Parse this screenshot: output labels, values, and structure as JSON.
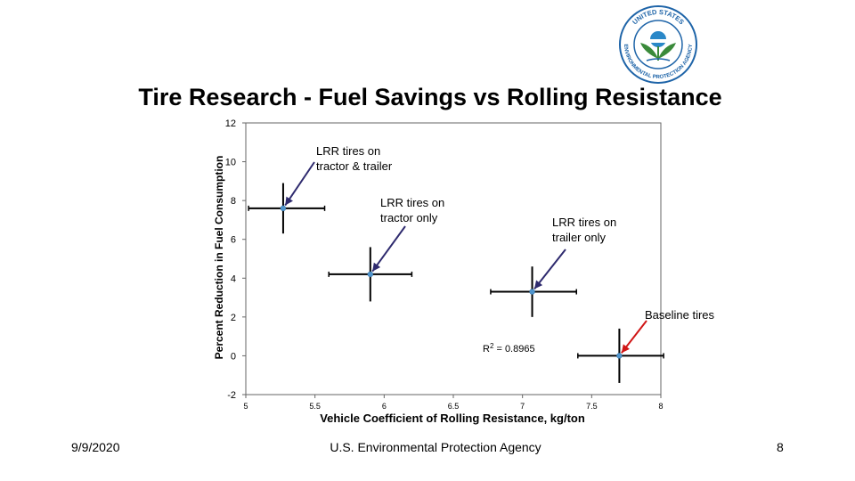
{
  "slide": {
    "title": "Tire Research - Fuel Savings vs Rolling Resistance",
    "date": "9/9/2020",
    "footer_center": "U.S. Environmental Protection Agency",
    "page_number": "8"
  },
  "logo": {
    "text_top": "UNITED STATES",
    "text_bottom": "ENVIRONMENTAL PROTECTION AGENCY",
    "ring_color": "#1e64a8",
    "globe_color": "#2a88c8",
    "leaf_color": "#3a8a3a"
  },
  "chart_data": {
    "type": "scatter",
    "title": "",
    "xlabel": "Vehicle Coefficient of Rolling Resistance, kg/ton",
    "ylabel": "Percent Reduction in Fuel Consumption",
    "xlim": [
      5,
      8
    ],
    "ylim": [
      -2,
      12
    ],
    "x_ticks": [
      5,
      5.5,
      6,
      6.5,
      7,
      7.5,
      8
    ],
    "x_tick_labels": [
      "5",
      "5.5",
      "6",
      "6.5",
      "7",
      "7.5",
      "8"
    ],
    "y_ticks": [
      -2,
      0,
      2,
      4,
      6,
      8,
      10,
      12
    ],
    "y_tick_labels": [
      "-2",
      "0",
      "2",
      "4",
      "6",
      "8",
      "10",
      "12"
    ],
    "grid": false,
    "marker_color": "#4f94cd",
    "error_bar_color": "#000000",
    "points": [
      {
        "x": 5.27,
        "y": 7.6,
        "x_err": [
          0.25,
          0.3
        ],
        "y_err": [
          1.3,
          1.3
        ]
      },
      {
        "x": 5.9,
        "y": 4.2,
        "x_err": [
          0.3,
          0.3
        ],
        "y_err": [
          1.4,
          1.4
        ]
      },
      {
        "x": 7.07,
        "y": 3.3,
        "x_err": [
          0.3,
          0.32
        ],
        "y_err": [
          1.3,
          1.3
        ]
      },
      {
        "x": 7.7,
        "y": 0.0,
        "x_err": [
          0.3,
          0.32
        ],
        "y_err": [
          1.4,
          1.4
        ]
      }
    ],
    "annotations": [
      {
        "text_lines": [
          "LRR tires on",
          "tractor & trailer"
        ],
        "arrow_color": "#2e2a6e"
      },
      {
        "text_lines": [
          "LRR tires on",
          "tractor only"
        ],
        "arrow_color": "#2e2a6e"
      },
      {
        "text_lines": [
          "LRR tires on",
          "trailer only"
        ],
        "arrow_color": "#2e2a6e"
      },
      {
        "text_lines": [
          "Baseline tires"
        ],
        "arrow_color": "#d01515"
      }
    ],
    "r_squared_label": "R",
    "r_squared_exp": "2",
    "r_squared_value": " = 0.8965"
  }
}
